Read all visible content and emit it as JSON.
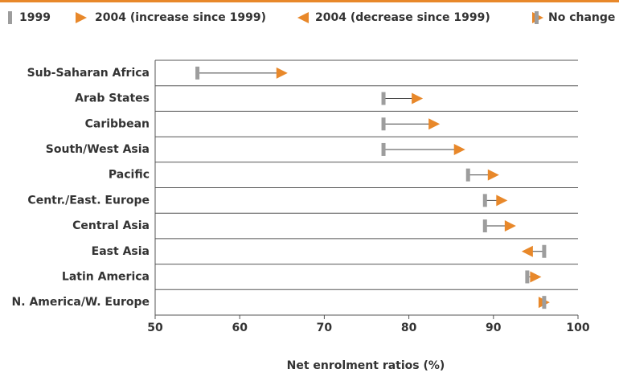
{
  "chart_data": {
    "type": "arrow",
    "legend": [
      "1999",
      "2004 (increase since 1999)",
      "2004 (decrease since 1999)",
      "No change"
    ],
    "categories": [
      "Sub-Saharan Africa",
      "Arab States",
      "Caribbean",
      "South/West Asia",
      "Pacific",
      "Centr./East. Europe",
      "Central Asia",
      "East Asia",
      "Latin America",
      "N. America/W. Europe"
    ],
    "series": [
      {
        "name": "1999",
        "color": "#9d9d9d",
        "values": [
          55,
          77,
          77,
          77,
          87,
          89,
          89,
          96,
          94,
          96
        ]
      },
      {
        "color": "#e8882a",
        "values": [
          65,
          81,
          83,
          86,
          90,
          91,
          92,
          94,
          95,
          96
        ]
      }
    ],
    "xlim": [
      50,
      100
    ],
    "xticks": [
      50,
      60,
      70,
      80,
      90,
      100
    ],
    "x_label": "Net enrolment ratios (%)"
  }
}
